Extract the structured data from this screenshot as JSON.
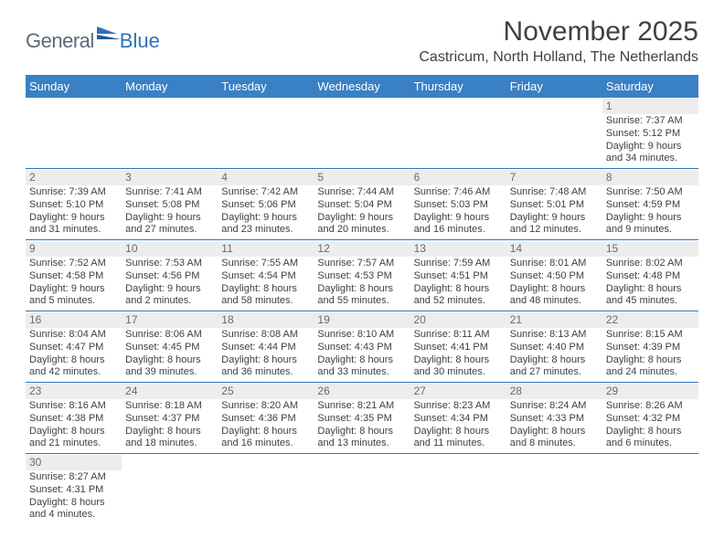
{
  "brand": {
    "part1": "General",
    "part2": "Blue"
  },
  "title": "November 2025",
  "location": "Castricum, North Holland, The Netherlands",
  "colors": {
    "header_bg": "#3a80c4",
    "header_text": "#ffffff",
    "week_border": "#2f72b8",
    "daynum_bg": "#ededed",
    "text": "#404040",
    "logo_gray": "#5a6a78",
    "logo_blue": "#2f72b8"
  },
  "day_names": [
    "Sunday",
    "Monday",
    "Tuesday",
    "Wednesday",
    "Thursday",
    "Friday",
    "Saturday"
  ],
  "weeks": [
    [
      null,
      null,
      null,
      null,
      null,
      null,
      {
        "n": "1",
        "sr": "Sunrise: 7:37 AM",
        "ss": "Sunset: 5:12 PM",
        "d1": "Daylight: 9 hours",
        "d2": "and 34 minutes."
      }
    ],
    [
      {
        "n": "2",
        "sr": "Sunrise: 7:39 AM",
        "ss": "Sunset: 5:10 PM",
        "d1": "Daylight: 9 hours",
        "d2": "and 31 minutes."
      },
      {
        "n": "3",
        "sr": "Sunrise: 7:41 AM",
        "ss": "Sunset: 5:08 PM",
        "d1": "Daylight: 9 hours",
        "d2": "and 27 minutes."
      },
      {
        "n": "4",
        "sr": "Sunrise: 7:42 AM",
        "ss": "Sunset: 5:06 PM",
        "d1": "Daylight: 9 hours",
        "d2": "and 23 minutes."
      },
      {
        "n": "5",
        "sr": "Sunrise: 7:44 AM",
        "ss": "Sunset: 5:04 PM",
        "d1": "Daylight: 9 hours",
        "d2": "and 20 minutes."
      },
      {
        "n": "6",
        "sr": "Sunrise: 7:46 AM",
        "ss": "Sunset: 5:03 PM",
        "d1": "Daylight: 9 hours",
        "d2": "and 16 minutes."
      },
      {
        "n": "7",
        "sr": "Sunrise: 7:48 AM",
        "ss": "Sunset: 5:01 PM",
        "d1": "Daylight: 9 hours",
        "d2": "and 12 minutes."
      },
      {
        "n": "8",
        "sr": "Sunrise: 7:50 AM",
        "ss": "Sunset: 4:59 PM",
        "d1": "Daylight: 9 hours",
        "d2": "and 9 minutes."
      }
    ],
    [
      {
        "n": "9",
        "sr": "Sunrise: 7:52 AM",
        "ss": "Sunset: 4:58 PM",
        "d1": "Daylight: 9 hours",
        "d2": "and 5 minutes."
      },
      {
        "n": "10",
        "sr": "Sunrise: 7:53 AM",
        "ss": "Sunset: 4:56 PM",
        "d1": "Daylight: 9 hours",
        "d2": "and 2 minutes."
      },
      {
        "n": "11",
        "sr": "Sunrise: 7:55 AM",
        "ss": "Sunset: 4:54 PM",
        "d1": "Daylight: 8 hours",
        "d2": "and 58 minutes."
      },
      {
        "n": "12",
        "sr": "Sunrise: 7:57 AM",
        "ss": "Sunset: 4:53 PM",
        "d1": "Daylight: 8 hours",
        "d2": "and 55 minutes."
      },
      {
        "n": "13",
        "sr": "Sunrise: 7:59 AM",
        "ss": "Sunset: 4:51 PM",
        "d1": "Daylight: 8 hours",
        "d2": "and 52 minutes."
      },
      {
        "n": "14",
        "sr": "Sunrise: 8:01 AM",
        "ss": "Sunset: 4:50 PM",
        "d1": "Daylight: 8 hours",
        "d2": "and 48 minutes."
      },
      {
        "n": "15",
        "sr": "Sunrise: 8:02 AM",
        "ss": "Sunset: 4:48 PM",
        "d1": "Daylight: 8 hours",
        "d2": "and 45 minutes."
      }
    ],
    [
      {
        "n": "16",
        "sr": "Sunrise: 8:04 AM",
        "ss": "Sunset: 4:47 PM",
        "d1": "Daylight: 8 hours",
        "d2": "and 42 minutes."
      },
      {
        "n": "17",
        "sr": "Sunrise: 8:06 AM",
        "ss": "Sunset: 4:45 PM",
        "d1": "Daylight: 8 hours",
        "d2": "and 39 minutes."
      },
      {
        "n": "18",
        "sr": "Sunrise: 8:08 AM",
        "ss": "Sunset: 4:44 PM",
        "d1": "Daylight: 8 hours",
        "d2": "and 36 minutes."
      },
      {
        "n": "19",
        "sr": "Sunrise: 8:10 AM",
        "ss": "Sunset: 4:43 PM",
        "d1": "Daylight: 8 hours",
        "d2": "and 33 minutes."
      },
      {
        "n": "20",
        "sr": "Sunrise: 8:11 AM",
        "ss": "Sunset: 4:41 PM",
        "d1": "Daylight: 8 hours",
        "d2": "and 30 minutes."
      },
      {
        "n": "21",
        "sr": "Sunrise: 8:13 AM",
        "ss": "Sunset: 4:40 PM",
        "d1": "Daylight: 8 hours",
        "d2": "and 27 minutes."
      },
      {
        "n": "22",
        "sr": "Sunrise: 8:15 AM",
        "ss": "Sunset: 4:39 PM",
        "d1": "Daylight: 8 hours",
        "d2": "and 24 minutes."
      }
    ],
    [
      {
        "n": "23",
        "sr": "Sunrise: 8:16 AM",
        "ss": "Sunset: 4:38 PM",
        "d1": "Daylight: 8 hours",
        "d2": "and 21 minutes."
      },
      {
        "n": "24",
        "sr": "Sunrise: 8:18 AM",
        "ss": "Sunset: 4:37 PM",
        "d1": "Daylight: 8 hours",
        "d2": "and 18 minutes."
      },
      {
        "n": "25",
        "sr": "Sunrise: 8:20 AM",
        "ss": "Sunset: 4:36 PM",
        "d1": "Daylight: 8 hours",
        "d2": "and 16 minutes."
      },
      {
        "n": "26",
        "sr": "Sunrise: 8:21 AM",
        "ss": "Sunset: 4:35 PM",
        "d1": "Daylight: 8 hours",
        "d2": "and 13 minutes."
      },
      {
        "n": "27",
        "sr": "Sunrise: 8:23 AM",
        "ss": "Sunset: 4:34 PM",
        "d1": "Daylight: 8 hours",
        "d2": "and 11 minutes."
      },
      {
        "n": "28",
        "sr": "Sunrise: 8:24 AM",
        "ss": "Sunset: 4:33 PM",
        "d1": "Daylight: 8 hours",
        "d2": "and 8 minutes."
      },
      {
        "n": "29",
        "sr": "Sunrise: 8:26 AM",
        "ss": "Sunset: 4:32 PM",
        "d1": "Daylight: 8 hours",
        "d2": "and 6 minutes."
      }
    ],
    [
      {
        "n": "30",
        "sr": "Sunrise: 8:27 AM",
        "ss": "Sunset: 4:31 PM",
        "d1": "Daylight: 8 hours",
        "d2": "and 4 minutes."
      },
      null,
      null,
      null,
      null,
      null,
      null
    ]
  ]
}
